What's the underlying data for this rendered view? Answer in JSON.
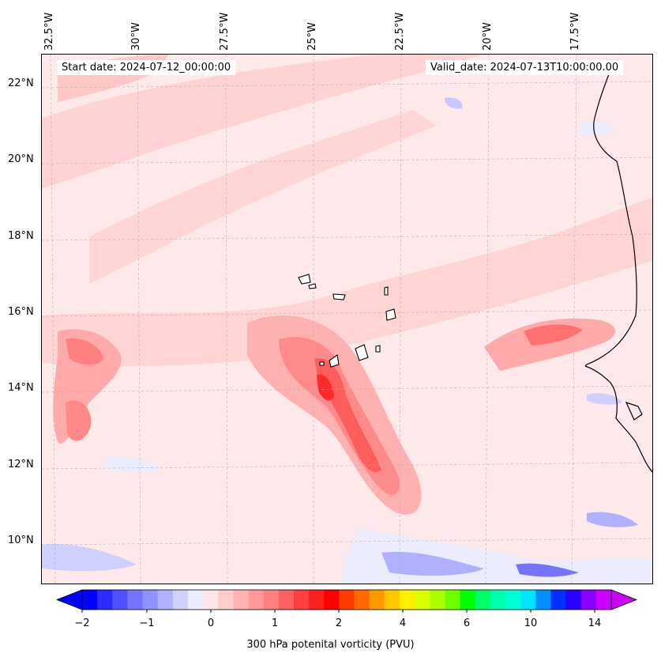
{
  "map": {
    "start_text": "Start date: 2024-07-12_00:00:00",
    "valid_text": "Valid_date: 2024-07-13T10:00:00.00",
    "lon_labels": [
      "32.5°W",
      "30°W",
      "27.5°W",
      "25°W",
      "22.5°W",
      "20°W",
      "17.5°W"
    ],
    "lat_labels": [
      "22°N",
      "20°N",
      "18°N",
      "16°N",
      "14°N",
      "12°N",
      "10°N"
    ],
    "extent": {
      "lon_min": -33.0,
      "lon_max": -15.5,
      "lat_min": 8.9,
      "lat_max": 22.8
    }
  },
  "colorbar": {
    "label": "300 hPa potenital vorticity (PVU)",
    "tick_labels": [
      "−2",
      "−1",
      "0",
      "1",
      "2",
      "4",
      "6",
      "10",
      "14"
    ],
    "colors": [
      "#0000ff",
      "#2b2bff",
      "#5050ff",
      "#7373ff",
      "#9090ff",
      "#b0b0ff",
      "#d0d0ff",
      "#ececff",
      "#ffe6e6",
      "#ffcccc",
      "#ffb3b3",
      "#ff9999",
      "#ff7f7f",
      "#ff6060",
      "#ff4040",
      "#ff2020",
      "#ff0000",
      "#ff3b00",
      "#ff6a00",
      "#ff9900",
      "#ffc800",
      "#fff000",
      "#dcff00",
      "#aaff00",
      "#6eff00",
      "#00ff00",
      "#00ff66",
      "#00ffaa",
      "#00ffd5",
      "#00e5ff",
      "#0090ff",
      "#0030ff",
      "#2a00ff",
      "#8a00ff",
      "#cc00ff"
    ],
    "extend_min_color": "#0000ff",
    "extend_max_color": "#cc00ff"
  }
}
